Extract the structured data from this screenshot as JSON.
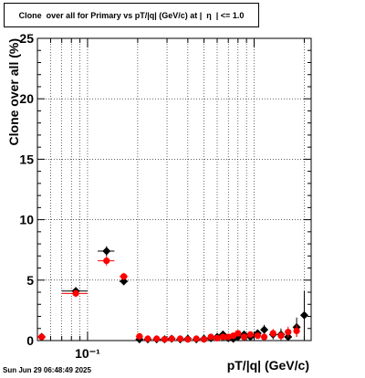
{
  "title": "Clone  over all for Primary vs pT/|q| (GeV/c) at |  η  | <= 1.0",
  "footer": "Sun Jun 29 06:48:49 2025",
  "chart_data": {
    "type": "scatter",
    "title": "Clone  over all for Primary vs pT/|q| (GeV/c) at |  η  | <= 1.0",
    "xlabel": "pT/|q| (GeV/c)",
    "ylabel": "Clone  over all (%)",
    "xscale": "log",
    "xlim": [
      0.05,
      2.2
    ],
    "ylim": [
      0,
      25
    ],
    "y_ticks": [
      0,
      5,
      10,
      15,
      20,
      25
    ],
    "x_tick_labels": [
      {
        "value": 0.1,
        "label": "10⁻¹"
      }
    ],
    "grid": true,
    "series": [
      {
        "color": "#000000",
        "marker": "diamond",
        "points": [
          {
            "x": 0.053,
            "y": 0.3,
            "xlo": 0.05,
            "xhi": 0.056,
            "err": 0.2
          },
          {
            "x": 0.085,
            "y": 4.1,
            "xlo": 0.07,
            "xhi": 0.1,
            "err": 0.3
          },
          {
            "x": 0.13,
            "y": 7.4,
            "xlo": 0.115,
            "xhi": 0.145,
            "err": 0.4
          },
          {
            "x": 0.165,
            "y": 4.9,
            "xlo": 0.155,
            "xhi": 0.175,
            "err": 0.3
          },
          {
            "x": 0.205,
            "y": 0.1,
            "xlo": 0.195,
            "xhi": 0.215,
            "err": 0.1
          },
          {
            "x": 0.23,
            "y": 0.1,
            "err": 0.1
          },
          {
            "x": 0.26,
            "y": 0.1,
            "err": 0.1
          },
          {
            "x": 0.29,
            "y": 0.1,
            "err": 0.1
          },
          {
            "x": 0.32,
            "y": 0.15,
            "err": 0.1
          },
          {
            "x": 0.36,
            "y": 0.1,
            "err": 0.1
          },
          {
            "x": 0.4,
            "y": 0.15,
            "err": 0.1
          },
          {
            "x": 0.45,
            "y": 0.1,
            "err": 0.1
          },
          {
            "x": 0.5,
            "y": 0.15,
            "err": 0.1
          },
          {
            "x": 0.55,
            "y": 0.2,
            "err": 0.1
          },
          {
            "x": 0.6,
            "y": 0.3,
            "err": 0.15
          },
          {
            "x": 0.65,
            "y": 0.5,
            "err": 0.2
          },
          {
            "x": 0.7,
            "y": 0.2,
            "err": 0.15
          },
          {
            "x": 0.75,
            "y": 0.15,
            "err": 0.15
          },
          {
            "x": 0.8,
            "y": 0.3,
            "err": 0.2
          },
          {
            "x": 0.87,
            "y": 0.5,
            "err": 0.25
          },
          {
            "x": 0.95,
            "y": 0.3,
            "err": 0.25
          },
          {
            "x": 1.05,
            "y": 0.6,
            "err": 0.3
          },
          {
            "x": 1.15,
            "y": 0.9,
            "err": 0.4
          },
          {
            "x": 1.3,
            "y": 0.5,
            "err": 0.4
          },
          {
            "x": 1.45,
            "y": 0.5,
            "err": 0.5
          },
          {
            "x": 1.6,
            "y": 0.3,
            "err": 0.5
          },
          {
            "x": 1.8,
            "y": 1.1,
            "err": 0.8
          },
          {
            "x": 2.0,
            "y": 2.1,
            "err": 2.0
          }
        ]
      },
      {
        "color": "#ff0000",
        "marker": "circle",
        "points": [
          {
            "x": 0.053,
            "y": 0.3,
            "xlo": 0.05,
            "xhi": 0.056,
            "err": 0.2
          },
          {
            "x": 0.085,
            "y": 3.9,
            "xlo": 0.07,
            "xhi": 0.1,
            "err": 0.3
          },
          {
            "x": 0.13,
            "y": 6.6,
            "xlo": 0.115,
            "xhi": 0.145,
            "err": 0.4
          },
          {
            "x": 0.165,
            "y": 5.3,
            "xlo": 0.155,
            "xhi": 0.175,
            "err": 0.3
          },
          {
            "x": 0.205,
            "y": 0.35,
            "xlo": 0.195,
            "xhi": 0.215,
            "err": 0.15
          },
          {
            "x": 0.23,
            "y": 0.15,
            "err": 0.1
          },
          {
            "x": 0.26,
            "y": 0.15,
            "err": 0.1
          },
          {
            "x": 0.29,
            "y": 0.1,
            "err": 0.1
          },
          {
            "x": 0.32,
            "y": 0.15,
            "err": 0.1
          },
          {
            "x": 0.36,
            "y": 0.15,
            "err": 0.1
          },
          {
            "x": 0.4,
            "y": 0.1,
            "err": 0.1
          },
          {
            "x": 0.45,
            "y": 0.15,
            "err": 0.1
          },
          {
            "x": 0.5,
            "y": 0.1,
            "err": 0.1
          },
          {
            "x": 0.55,
            "y": 0.3,
            "err": 0.15
          },
          {
            "x": 0.6,
            "y": 0.2,
            "err": 0.15
          },
          {
            "x": 0.65,
            "y": 0.3,
            "err": 0.2
          },
          {
            "x": 0.7,
            "y": 0.3,
            "err": 0.15
          },
          {
            "x": 0.75,
            "y": 0.4,
            "err": 0.2
          },
          {
            "x": 0.8,
            "y": 0.6,
            "err": 0.25
          },
          {
            "x": 0.87,
            "y": 0.3,
            "err": 0.2
          },
          {
            "x": 0.95,
            "y": 0.5,
            "err": 0.25
          },
          {
            "x": 1.05,
            "y": 0.4,
            "err": 0.25
          },
          {
            "x": 1.15,
            "y": 0.3,
            "err": 0.3
          },
          {
            "x": 1.3,
            "y": 0.6,
            "err": 0.35
          },
          {
            "x": 1.45,
            "y": 0.4,
            "err": 0.35
          },
          {
            "x": 1.6,
            "y": 0.7,
            "err": 0.45
          },
          {
            "x": 1.8,
            "y": 0.8,
            "err": 0.5
          }
        ]
      }
    ]
  }
}
